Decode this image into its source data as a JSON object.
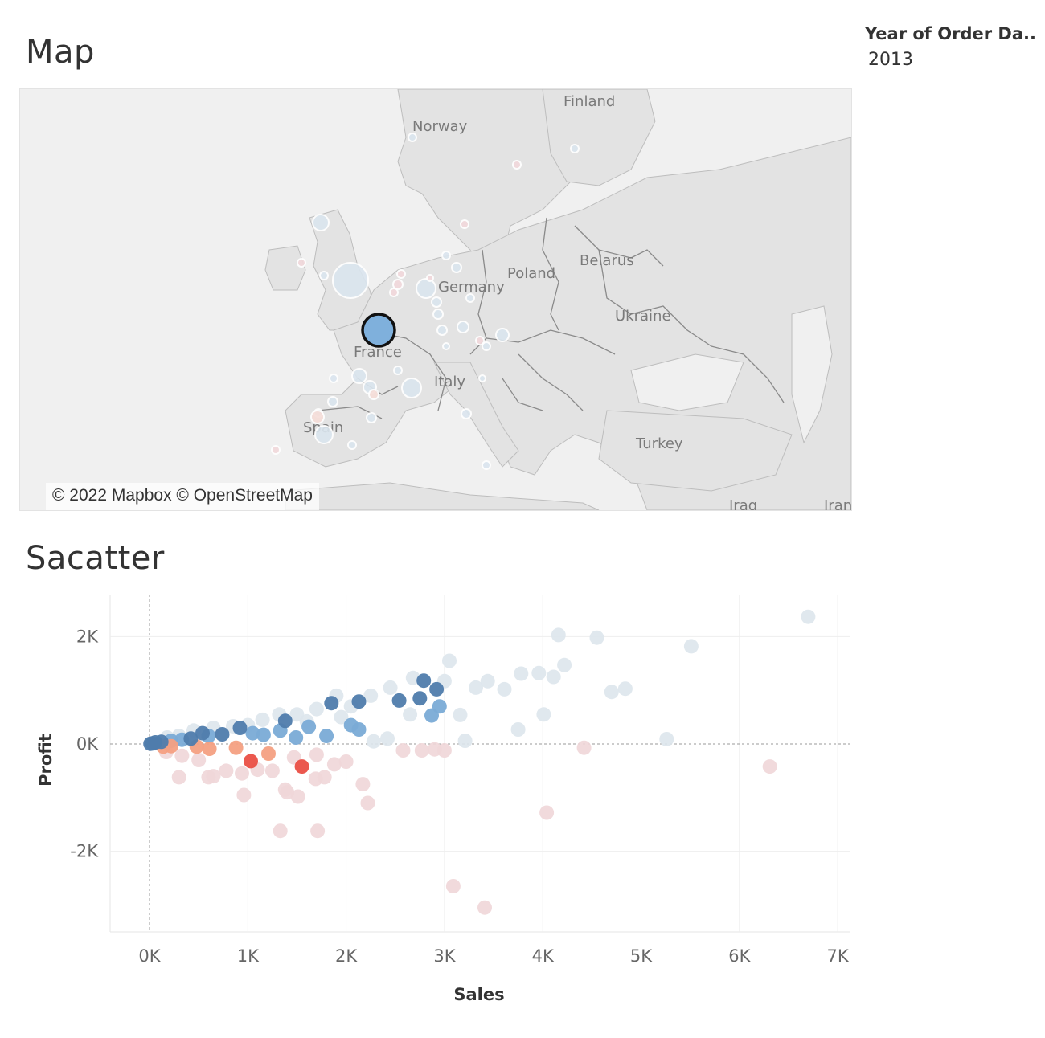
{
  "dashboard": {
    "map_title": "Map",
    "scatter_title": "Sacatter"
  },
  "filter": {
    "label": "Year of Order Da..",
    "value": "2013"
  },
  "map": {
    "attribution": "© 2022 Mapbox © OpenStreetMap",
    "country_labels": [
      "Finland",
      "Norway",
      "Poland",
      "Belarus",
      "Ukraine",
      "France",
      "Spain",
      "Turkey",
      "Iraq",
      "Iran",
      "Germany",
      "Italy"
    ],
    "colors": {
      "land": "#e3e3e3",
      "water": "#f0f0f0",
      "border": "#8a8a8a",
      "selected": "#7fb0dc",
      "selected_stroke": "#111111"
    }
  },
  "chart_data": {
    "type": "scatter",
    "title": "",
    "xlabel": "Sales",
    "ylabel": "Profit",
    "xlim": [
      -400,
      7000
    ],
    "ylim": [
      -3500,
      2750
    ],
    "x_ticks": [
      "0K",
      "1K",
      "2K",
      "3K",
      "4K",
      "5K",
      "6K",
      "7K"
    ],
    "x_tick_values": [
      0,
      1000,
      2000,
      3000,
      4000,
      5000,
      6000,
      7000
    ],
    "y_ticks": [
      "2K",
      "0K",
      "-2K"
    ],
    "y_tick_values": [
      2000,
      0,
      -2000
    ],
    "grid": true,
    "color_encoding": "diverging blue-red by profit",
    "colors": {
      "strong_blue": "#4f7cac",
      "mid_blue": "#7aabd6",
      "pale_blue": "#dde5ec",
      "pale_red": "#f0d6d8",
      "mid_red": "#f4a082",
      "strong_red": "#ea4f44"
    },
    "points": [
      {
        "x": 10,
        "y": 5,
        "c": "strong_blue"
      },
      {
        "x": 30,
        "y": 10,
        "c": "strong_blue"
      },
      {
        "x": 60,
        "y": 30,
        "c": "strong_blue"
      },
      {
        "x": 120,
        "y": 40,
        "c": "strong_blue"
      },
      {
        "x": 220,
        "y": 60,
        "c": "mid_blue"
      },
      {
        "x": 330,
        "y": 80,
        "c": "mid_blue"
      },
      {
        "x": 420,
        "y": 100,
        "c": "strong_blue"
      },
      {
        "x": 540,
        "y": 200,
        "c": "strong_blue"
      },
      {
        "x": 600,
        "y": 150,
        "c": "mid_blue"
      },
      {
        "x": 740,
        "y": 180,
        "c": "strong_blue"
      },
      {
        "x": 920,
        "y": 300,
        "c": "strong_blue"
      },
      {
        "x": 1050,
        "y": 200,
        "c": "mid_blue"
      },
      {
        "x": 1160,
        "y": 170,
        "c": "mid_blue"
      },
      {
        "x": 1330,
        "y": 250,
        "c": "mid_blue"
      },
      {
        "x": 1380,
        "y": 430,
        "c": "strong_blue"
      },
      {
        "x": 1490,
        "y": 120,
        "c": "mid_blue"
      },
      {
        "x": 1620,
        "y": 320,
        "c": "mid_blue"
      },
      {
        "x": 1800,
        "y": 150,
        "c": "mid_blue"
      },
      {
        "x": 1850,
        "y": 760,
        "c": "strong_blue"
      },
      {
        "x": 2050,
        "y": 350,
        "c": "mid_blue"
      },
      {
        "x": 2130,
        "y": 790,
        "c": "strong_blue"
      },
      {
        "x": 2130,
        "y": 270,
        "c": "mid_blue"
      },
      {
        "x": 2540,
        "y": 810,
        "c": "strong_blue"
      },
      {
        "x": 2750,
        "y": 850,
        "c": "strong_blue"
      },
      {
        "x": 2790,
        "y": 1180,
        "c": "strong_blue"
      },
      {
        "x": 2920,
        "y": 1020,
        "c": "strong_blue"
      },
      {
        "x": 2870,
        "y": 530,
        "c": "mid_blue"
      },
      {
        "x": 2950,
        "y": 700,
        "c": "mid_blue"
      },
      {
        "x": 50,
        "y": 10,
        "c": "pale_blue"
      },
      {
        "x": 180,
        "y": 120,
        "c": "pale_blue"
      },
      {
        "x": 300,
        "y": 150,
        "c": "pale_blue"
      },
      {
        "x": 450,
        "y": 250,
        "c": "pale_blue"
      },
      {
        "x": 650,
        "y": 300,
        "c": "pale_blue"
      },
      {
        "x": 850,
        "y": 330,
        "c": "pale_blue"
      },
      {
        "x": 1000,
        "y": 350,
        "c": "pale_blue"
      },
      {
        "x": 1150,
        "y": 450,
        "c": "pale_blue"
      },
      {
        "x": 1320,
        "y": 550,
        "c": "pale_blue"
      },
      {
        "x": 1500,
        "y": 550,
        "c": "pale_blue"
      },
      {
        "x": 1700,
        "y": 650,
        "c": "pale_blue"
      },
      {
        "x": 1900,
        "y": 900,
        "c": "pale_blue"
      },
      {
        "x": 2050,
        "y": 700,
        "c": "pale_blue"
      },
      {
        "x": 2250,
        "y": 900,
        "c": "pale_blue"
      },
      {
        "x": 2450,
        "y": 1050,
        "c": "pale_blue"
      },
      {
        "x": 2680,
        "y": 1230,
        "c": "pale_blue"
      },
      {
        "x": 3000,
        "y": 1170,
        "c": "pale_blue"
      },
      {
        "x": 3050,
        "y": 1550,
        "c": "pale_blue"
      },
      {
        "x": 3320,
        "y": 1050,
        "c": "pale_blue"
      },
      {
        "x": 3440,
        "y": 1170,
        "c": "pale_blue"
      },
      {
        "x": 3610,
        "y": 1020,
        "c": "pale_blue"
      },
      {
        "x": 3780,
        "y": 1310,
        "c": "pale_blue"
      },
      {
        "x": 3960,
        "y": 1320,
        "c": "pale_blue"
      },
      {
        "x": 4110,
        "y": 1250,
        "c": "pale_blue"
      },
      {
        "x": 4220,
        "y": 1470,
        "c": "pale_blue"
      },
      {
        "x": 4160,
        "y": 2030,
        "c": "pale_blue"
      },
      {
        "x": 4550,
        "y": 1980,
        "c": "pale_blue"
      },
      {
        "x": 4700,
        "y": 970,
        "c": "pale_blue"
      },
      {
        "x": 4840,
        "y": 1030,
        "c": "pale_blue"
      },
      {
        "x": 5510,
        "y": 1820,
        "c": "pale_blue"
      },
      {
        "x": 6700,
        "y": 2370,
        "c": "pale_blue"
      },
      {
        "x": 4010,
        "y": 550,
        "c": "pale_blue"
      },
      {
        "x": 3750,
        "y": 270,
        "c": "pale_blue"
      },
      {
        "x": 3160,
        "y": 540,
        "c": "pale_blue"
      },
      {
        "x": 2420,
        "y": 100,
        "c": "pale_blue"
      },
      {
        "x": 3210,
        "y": 60,
        "c": "pale_blue"
      },
      {
        "x": 5260,
        "y": 90,
        "c": "pale_blue"
      },
      {
        "x": 2280,
        "y": 50,
        "c": "pale_blue"
      },
      {
        "x": 2650,
        "y": 550,
        "c": "pale_blue"
      },
      {
        "x": 1950,
        "y": 500,
        "c": "pale_blue"
      },
      {
        "x": 1600,
        "y": 420,
        "c": "pale_blue"
      },
      {
        "x": 140,
        "y": -50,
        "c": "mid_red"
      },
      {
        "x": 220,
        "y": -40,
        "c": "mid_red"
      },
      {
        "x": 480,
        "y": -50,
        "c": "mid_red"
      },
      {
        "x": 610,
        "y": -90,
        "c": "mid_red"
      },
      {
        "x": 880,
        "y": -70,
        "c": "mid_red"
      },
      {
        "x": 1210,
        "y": -180,
        "c": "mid_red"
      },
      {
        "x": 1030,
        "y": -320,
        "c": "strong_red"
      },
      {
        "x": 1550,
        "y": -420,
        "c": "strong_red"
      },
      {
        "x": 170,
        "y": -150,
        "c": "pale_red"
      },
      {
        "x": 330,
        "y": -220,
        "c": "pale_red"
      },
      {
        "x": 500,
        "y": -300,
        "c": "pale_red"
      },
      {
        "x": 600,
        "y": -620,
        "c": "pale_red"
      },
      {
        "x": 300,
        "y": -620,
        "c": "pale_red"
      },
      {
        "x": 650,
        "y": -600,
        "c": "pale_red"
      },
      {
        "x": 780,
        "y": -500,
        "c": "pale_red"
      },
      {
        "x": 940,
        "y": -550,
        "c": "pale_red"
      },
      {
        "x": 960,
        "y": -950,
        "c": "pale_red"
      },
      {
        "x": 1100,
        "y": -480,
        "c": "pale_red"
      },
      {
        "x": 1250,
        "y": -500,
        "c": "pale_red"
      },
      {
        "x": 1380,
        "y": -850,
        "c": "pale_red"
      },
      {
        "x": 1400,
        "y": -900,
        "c": "pale_red"
      },
      {
        "x": 1510,
        "y": -980,
        "c": "pale_red"
      },
      {
        "x": 1330,
        "y": -1620,
        "c": "pale_red"
      },
      {
        "x": 1710,
        "y": -1620,
        "c": "pale_red"
      },
      {
        "x": 1690,
        "y": -650,
        "c": "pale_red"
      },
      {
        "x": 1780,
        "y": -620,
        "c": "pale_red"
      },
      {
        "x": 1880,
        "y": -380,
        "c": "pale_red"
      },
      {
        "x": 2000,
        "y": -330,
        "c": "pale_red"
      },
      {
        "x": 2170,
        "y": -750,
        "c": "pale_red"
      },
      {
        "x": 2220,
        "y": -1100,
        "c": "pale_red"
      },
      {
        "x": 1470,
        "y": -250,
        "c": "pale_red"
      },
      {
        "x": 1700,
        "y": -200,
        "c": "pale_red"
      },
      {
        "x": 2580,
        "y": -120,
        "c": "pale_red"
      },
      {
        "x": 2770,
        "y": -120,
        "c": "pale_red"
      },
      {
        "x": 2900,
        "y": -100,
        "c": "pale_red"
      },
      {
        "x": 3000,
        "y": -120,
        "c": "pale_red"
      },
      {
        "x": 4420,
        "y": -70,
        "c": "pale_red"
      },
      {
        "x": 4040,
        "y": -1280,
        "c": "pale_red"
      },
      {
        "x": 3090,
        "y": -2650,
        "c": "pale_red"
      },
      {
        "x": 3410,
        "y": -3050,
        "c": "pale_red"
      },
      {
        "x": 6310,
        "y": -420,
        "c": "pale_red"
      }
    ]
  }
}
